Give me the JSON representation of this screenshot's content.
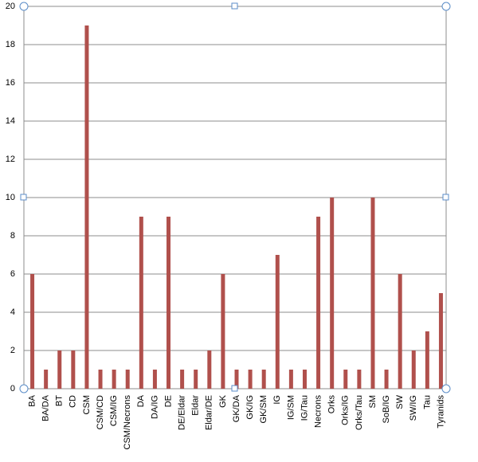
{
  "chart_data": {
    "type": "bar",
    "categories": [
      "BA",
      "BA/DA",
      "BT",
      "CD",
      "CSM",
      "CSM/CD",
      "CSM/IG",
      "CSM/Necrons",
      "DA",
      "DA/IG",
      "DE",
      "DE/Eldar",
      "Eldar",
      "Eldar/DE",
      "GK",
      "GK/DA",
      "GK/IG",
      "GK/SM",
      "IG",
      "IG/SM",
      "IG/Tau",
      "Necrons",
      "Orks",
      "Orks/IG",
      "Orks/Tau",
      "SM",
      "SoB/IG",
      "SW",
      "SW/IG",
      "Tau",
      "Tyranids"
    ],
    "values": [
      6,
      1,
      2,
      2,
      19,
      1,
      1,
      1,
      9,
      1,
      9,
      1,
      1,
      2,
      6,
      1,
      1,
      1,
      7,
      1,
      1,
      9,
      10,
      1,
      1,
      10,
      1,
      6,
      2,
      3,
      5
    ],
    "color": "#b0504c",
    "ylim": [
      0,
      20
    ],
    "yticks": [
      0,
      2,
      4,
      6,
      8,
      10,
      12,
      14,
      16,
      18,
      20
    ],
    "grid": true
  }
}
